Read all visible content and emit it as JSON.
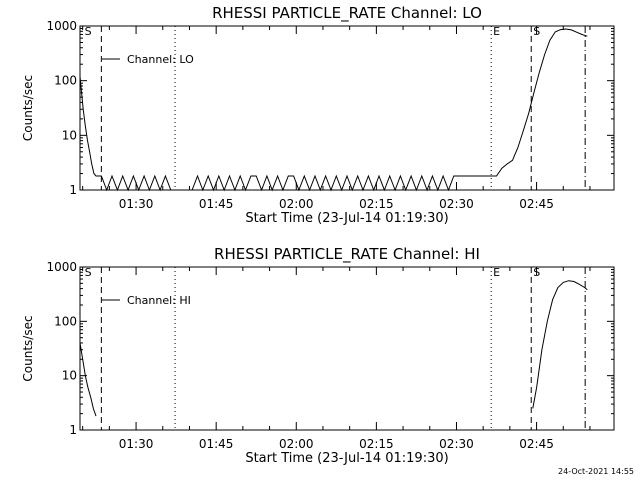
{
  "chart_data": [
    {
      "type": "line",
      "title": "RHESSI PARTICLE_RATE Channel: LO",
      "xlabel": "Start Time (23-Jul-14 01:19:30)",
      "ylabel": "Counts/sec",
      "yscale": "log",
      "ylim": [
        1,
        1000
      ],
      "y_ticks": [
        "1",
        "10",
        "100",
        "1000"
      ],
      "xlim_minutes": [
        0,
        100
      ],
      "x_ticks": [
        "01:30",
        "01:45",
        "02:00",
        "02:15",
        "02:30",
        "02:45"
      ],
      "x_tick_minutes": [
        10.5,
        25.5,
        40.5,
        55.5,
        70.5,
        85.5
      ],
      "legend_label": "Channel: LO",
      "legend_position": "top-left",
      "markers": [
        {
          "label": "S",
          "minute": 0.5,
          "style": "none"
        },
        {
          "label": "",
          "minute": 4.0,
          "style": "dashed"
        },
        {
          "label": "",
          "minute": 17.8,
          "style": "dotted"
        },
        {
          "label": "E",
          "minute": 77.0,
          "style": "dotted"
        },
        {
          "label": "S",
          "minute": 84.5,
          "style": "dashed"
        },
        {
          "label": "",
          "minute": 94.6,
          "style": "dashdot"
        }
      ],
      "series": [
        {
          "x": [
            0,
            0.3,
            0.6,
            1,
            1.4,
            1.8,
            2.2,
            2.6,
            3,
            3.4,
            4,
            5,
            6,
            7,
            8,
            9,
            10,
            11,
            12,
            13,
            14,
            15,
            16,
            17,
            19,
            21,
            22,
            23,
            24,
            25,
            26,
            27,
            28,
            29,
            30,
            31,
            32,
            33,
            34,
            35,
            36,
            37,
            38,
            39,
            40,
            41,
            42,
            43,
            44,
            45,
            46,
            47,
            48,
            49,
            50,
            51,
            52,
            53,
            54,
            55,
            56,
            57,
            58,
            59,
            60,
            61,
            62,
            63,
            64,
            65,
            66,
            67,
            68,
            69,
            70,
            71,
            72,
            73,
            74,
            75,
            76,
            77,
            78,
            79,
            80,
            81,
            82,
            83,
            84,
            85,
            86,
            87,
            88,
            89,
            90,
            91,
            92,
            93,
            94,
            95
          ],
          "values": [
            120,
            60,
            30,
            15,
            8,
            5,
            3,
            2,
            1.8,
            1.8,
            1.8,
            1,
            1.8,
            1,
            1.8,
            1,
            1.8,
            1,
            1.8,
            1,
            1.8,
            1,
            1.8,
            1,
            1,
            1,
            1.8,
            1,
            1.8,
            1,
            1.8,
            1,
            1.8,
            1,
            1.8,
            1,
            1.8,
            1.8,
            1,
            1.8,
            1,
            1.8,
            1,
            1.8,
            1.8,
            1,
            1.8,
            1,
            1.8,
            1,
            1.8,
            1,
            1.8,
            1,
            1.8,
            1,
            1.8,
            1,
            1.8,
            1,
            1.8,
            1,
            1.8,
            1,
            1.8,
            1,
            1.8,
            1,
            1.8,
            1,
            1.8,
            1,
            1.8,
            1,
            1.8,
            1.8,
            1.8,
            1.8,
            1.8,
            1.8,
            1.8,
            1.8,
            1.8,
            2.5,
            3,
            3.5,
            6,
            12,
            25,
            60,
            140,
            300,
            550,
            780,
            860,
            880,
            850,
            770,
            700,
            650
          ]
        }
      ]
    },
    {
      "type": "line",
      "title": "RHESSI PARTICLE_RATE Channel: HI",
      "xlabel": "Start Time (23-Jul-14 01:19:30)",
      "ylabel": "Counts/sec",
      "yscale": "log",
      "ylim": [
        1,
        1000
      ],
      "y_ticks": [
        "1",
        "10",
        "100",
        "1000"
      ],
      "xlim_minutes": [
        0,
        100
      ],
      "x_ticks": [
        "01:30",
        "01:45",
        "02:00",
        "02:15",
        "02:30",
        "02:45"
      ],
      "x_tick_minutes": [
        10.5,
        25.5,
        40.5,
        55.5,
        70.5,
        85.5
      ],
      "legend_label": "Channel: HI",
      "legend_position": "top-left",
      "markers": [
        {
          "label": "S",
          "minute": 0.5,
          "style": "none"
        },
        {
          "label": "",
          "minute": 4.0,
          "style": "dashed"
        },
        {
          "label": "",
          "minute": 17.8,
          "style": "dotted"
        },
        {
          "label": "E",
          "minute": 77.0,
          "style": "dotted"
        },
        {
          "label": "S",
          "minute": 84.5,
          "style": "dashed"
        },
        {
          "label": "",
          "minute": 94.6,
          "style": "dashdot"
        }
      ],
      "series": [
        {
          "x": [
            0,
            0.5,
            1,
            1.5,
            2,
            2.5,
            3,
            84.8,
            85.5,
            86.5,
            87.5,
            88.5,
            89.5,
            90.5,
            91.5,
            92.5,
            93.5,
            94.5,
            95
          ],
          "values": [
            40,
            20,
            10,
            6,
            4,
            2.5,
            1.8,
            2.5,
            6,
            30,
            100,
            250,
            420,
            520,
            560,
            540,
            480,
            420,
            380
          ],
          "gap_after_index": 6
        }
      ]
    }
  ],
  "timestamp": "24-Oct-2021 14:55"
}
